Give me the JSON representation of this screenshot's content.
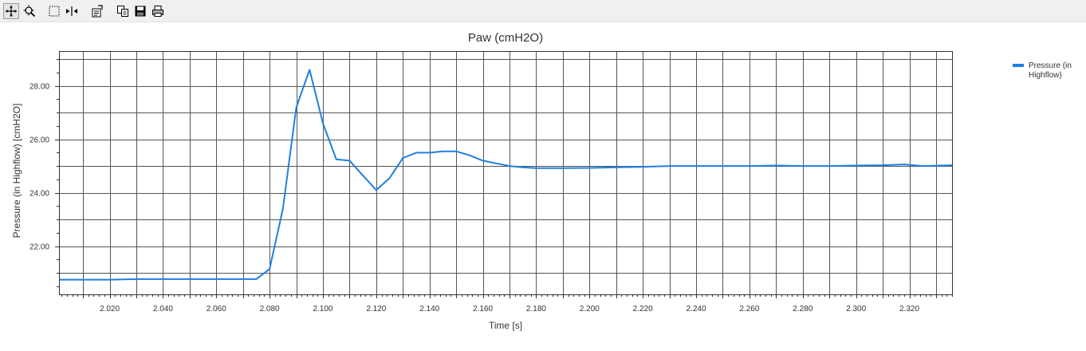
{
  "toolbar": {
    "buttons": [
      {
        "name": "pan-button",
        "icon": "move-arrows-icon",
        "pressed": true
      },
      {
        "name": "zoom-button",
        "icon": "zoom-icon"
      },
      {
        "name": "select-region-button",
        "icon": "dashed-select-icon"
      },
      {
        "name": "split-view-button",
        "icon": "split-arrows-icon"
      },
      {
        "name": "properties-button",
        "icon": "properties-icon"
      },
      {
        "name": "copy-button",
        "icon": "copy-icon"
      },
      {
        "name": "save-button",
        "icon": "save-icon"
      },
      {
        "name": "print-button",
        "icon": "print-icon"
      }
    ]
  },
  "chart_data": {
    "type": "line",
    "title": "Paw (cmH2O)",
    "xlabel": "Time [s]",
    "ylabel": "Pressure (in Highflow) [cmH2O]",
    "xlim": [
      2.001,
      2.336
    ],
    "ylim": [
      20.2,
      29.3
    ],
    "xticks": [
      "2.020",
      "2.040",
      "2.060",
      "2.080",
      "2.100",
      "2.120",
      "2.140",
      "2.160",
      "2.180",
      "2.200",
      "2.220",
      "2.240",
      "2.260",
      "2.280",
      "2.300",
      "2.320"
    ],
    "yticks": [
      "22.00",
      "24.00",
      "26.00",
      "28.00"
    ],
    "grid": true,
    "legend_position": "right",
    "series": [
      {
        "name": "Pressure (in Highflow)",
        "color": "#1f7fe0",
        "x": [
          2.001,
          2.01,
          2.02,
          2.03,
          2.04,
          2.05,
          2.06,
          2.07,
          2.075,
          2.08,
          2.085,
          2.09,
          2.095,
          2.1,
          2.105,
          2.11,
          2.115,
          2.12,
          2.125,
          2.13,
          2.135,
          2.14,
          2.145,
          2.15,
          2.155,
          2.16,
          2.165,
          2.17,
          2.175,
          2.18,
          2.19,
          2.2,
          2.21,
          2.22,
          2.23,
          2.24,
          2.25,
          2.26,
          2.27,
          2.28,
          2.29,
          2.3,
          2.31,
          2.318,
          2.325,
          2.336
        ],
        "values": [
          20.75,
          20.75,
          20.75,
          20.77,
          20.77,
          20.77,
          20.77,
          20.77,
          20.77,
          21.15,
          23.4,
          27.2,
          28.6,
          26.6,
          25.25,
          25.2,
          24.65,
          24.1,
          24.55,
          25.3,
          25.5,
          25.5,
          25.55,
          25.55,
          25.4,
          25.2,
          25.1,
          25.0,
          24.95,
          24.92,
          24.92,
          24.93,
          24.95,
          24.97,
          25.0,
          25.0,
          25.0,
          25.0,
          25.02,
          25.0,
          25.0,
          25.02,
          25.03,
          25.06,
          25.0,
          25.03
        ]
      }
    ]
  }
}
